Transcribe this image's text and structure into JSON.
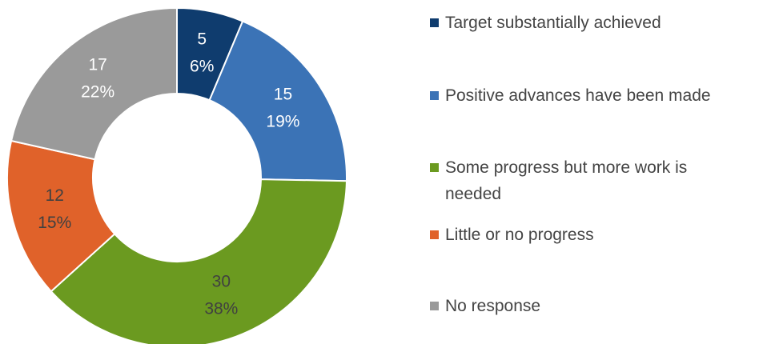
{
  "chart_data": {
    "type": "donut",
    "categories": [
      "Target substantially achieved",
      "Positive advances have been made",
      "Some progress but more work is needed",
      "Little or no progress",
      "No response"
    ],
    "values": [
      5,
      15,
      30,
      12,
      17
    ],
    "percents": [
      6,
      19,
      38,
      15,
      22
    ],
    "percent_labels": [
      "6%",
      "19%",
      "38%",
      "15%",
      "22%"
    ],
    "colors": [
      "#0f3c6e",
      "#3b73b6",
      "#6b9a20",
      "#e0622a",
      "#9a9a9a"
    ],
    "label_colors": [
      "#ffffff",
      "#ffffff",
      "#404040",
      "#404040",
      "#ffffff"
    ],
    "legend": "right"
  }
}
